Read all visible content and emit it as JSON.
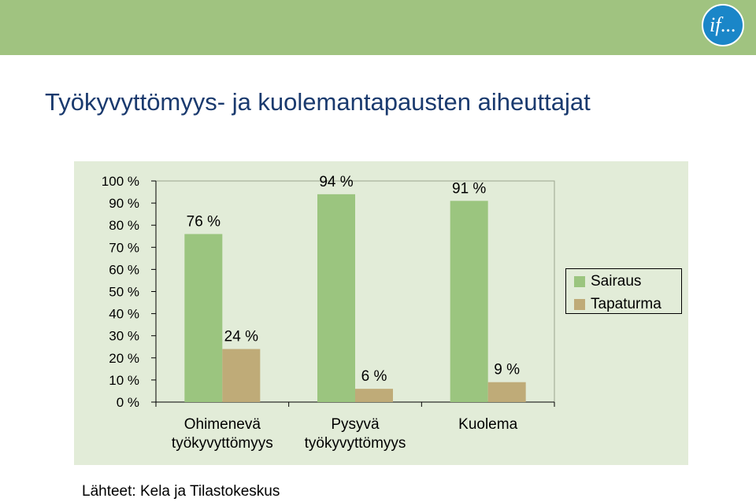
{
  "header": {
    "logo_text": "if...",
    "band_color": "#a0c380",
    "logo_color": "#1a86c8"
  },
  "title": "Työkyvyttömyys- ja kuolemantapausten aiheuttajat",
  "source": "Lähteet: Kela ja Tilastokeskus",
  "chart_data": {
    "type": "bar",
    "categories": [
      [
        "Ohimenevä",
        "työkyvyttömyys"
      ],
      [
        "Pysyvä",
        "työkyvyttömyys"
      ],
      [
        "Kuolema"
      ]
    ],
    "series": [
      {
        "name": "Sairaus",
        "values": [
          76,
          94,
          91
        ],
        "labels": [
          "76 %",
          "94 %",
          "91 %"
        ],
        "color": "#9bc57f"
      },
      {
        "name": "Tapaturma",
        "values": [
          24,
          6,
          9
        ],
        "labels": [
          "24 %",
          "6 %",
          "9 %"
        ],
        "color": "#bfab78"
      }
    ],
    "ylim": [
      0,
      100
    ],
    "yticks": [
      "0 %",
      "10 %",
      "20 %",
      "30 %",
      "40 %",
      "50 %",
      "60 %",
      "70 %",
      "80 %",
      "90 %",
      "100 %"
    ],
    "legend": "right",
    "grid": false
  }
}
